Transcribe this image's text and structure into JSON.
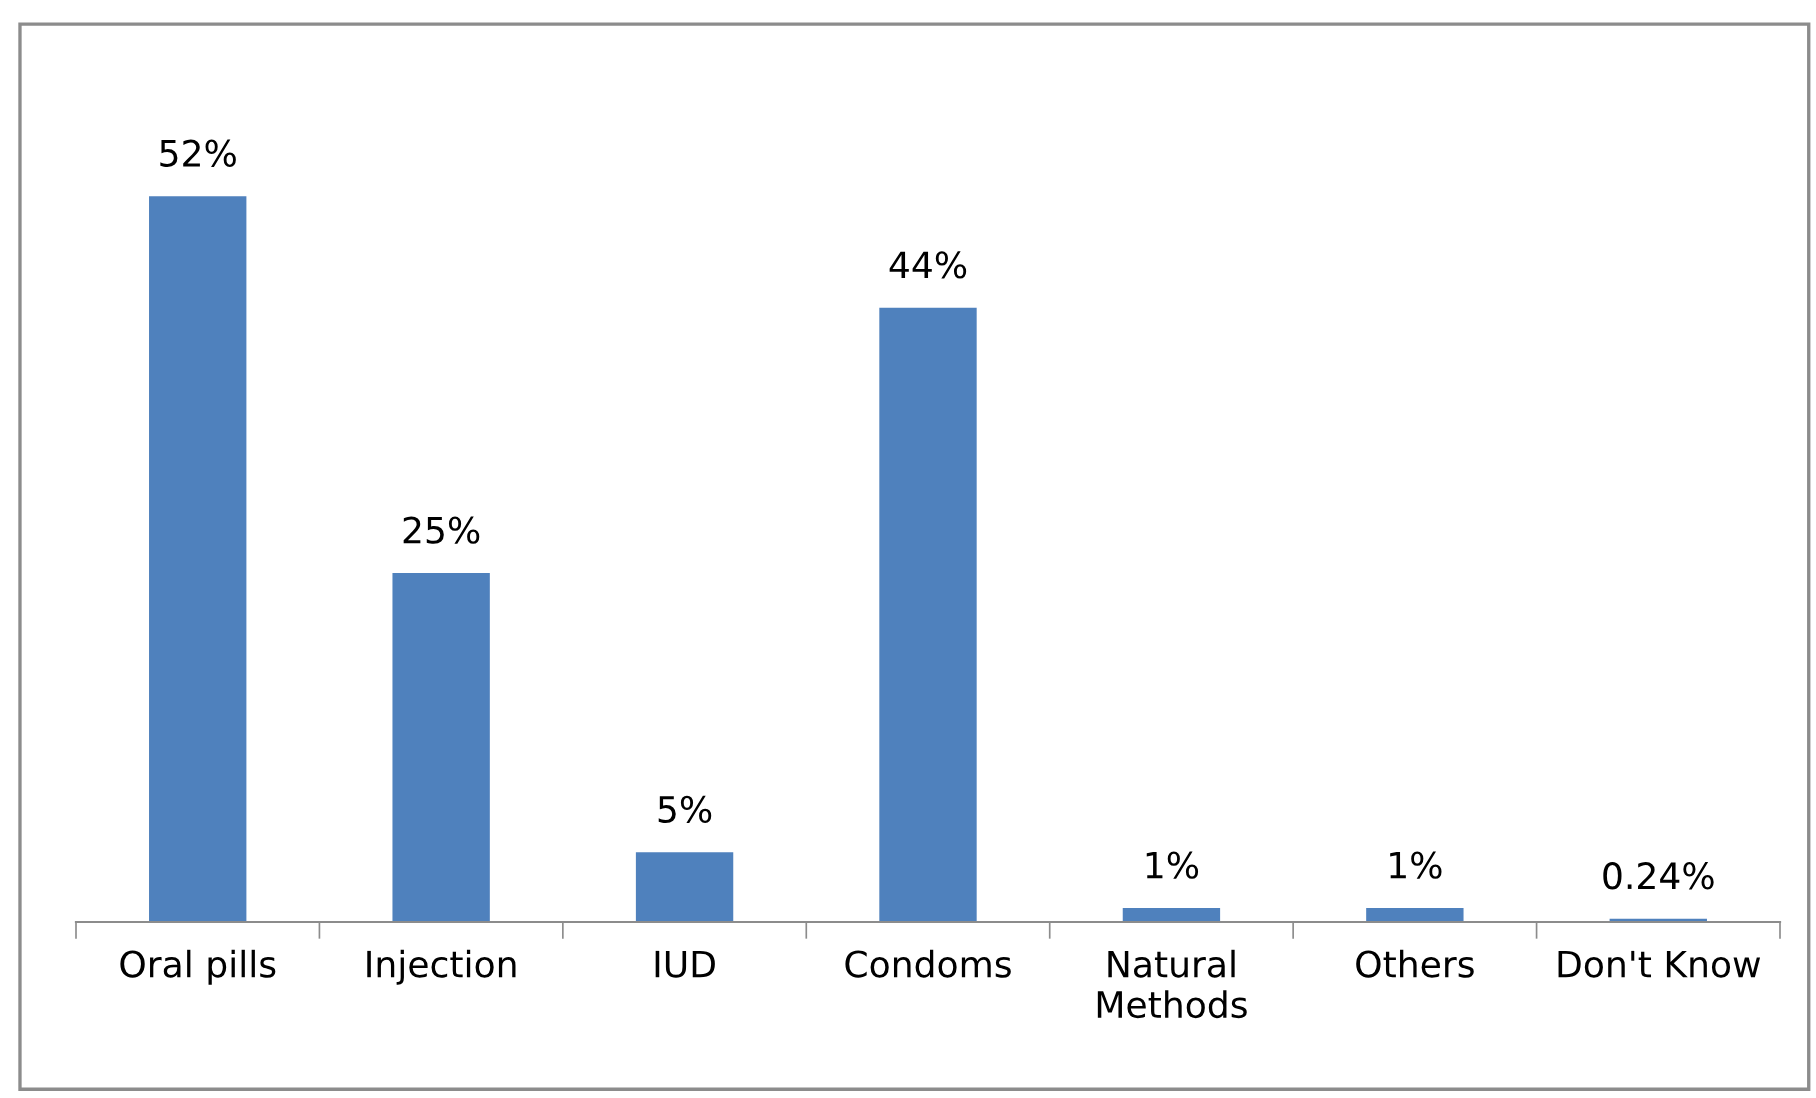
{
  "chart_data": {
    "type": "bar",
    "categories": [
      "Oral pills",
      "Injection",
      "IUD",
      "Condoms",
      "Natural\nMethods",
      "Others",
      "Don't Know"
    ],
    "values": [
      52,
      25,
      5,
      44,
      1,
      1,
      0.24
    ],
    "value_labels": [
      "52%",
      "25%",
      "5%",
      "44%",
      "1%",
      "1%",
      "0.24%"
    ],
    "color": "#4f81bd",
    "grid": false,
    "legend": false
  }
}
